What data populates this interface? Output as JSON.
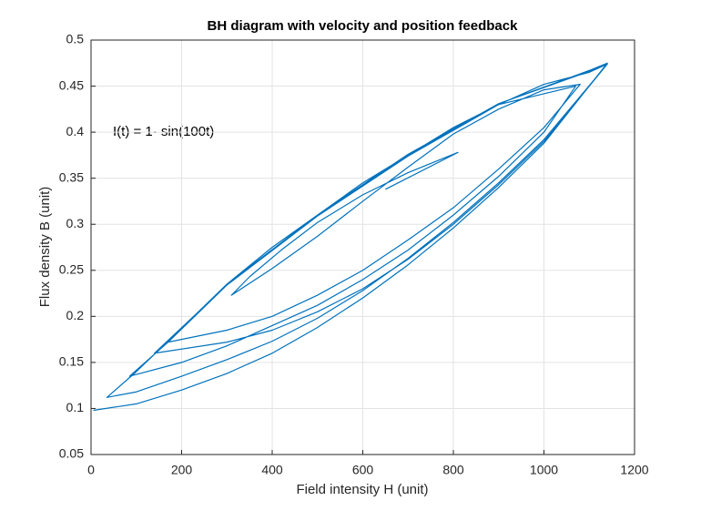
{
  "chart_data": {
    "type": "line",
    "title": "BH diagram with velocity and position feedback",
    "xlabel": "Field intensity H (unit)",
    "ylabel": "Flux density B (unit)",
    "annotation": "I(t) = 1· sin(100t)",
    "xlim": [
      0,
      1200
    ],
    "xticks": [
      0,
      200,
      400,
      600,
      800,
      1000,
      1200
    ],
    "ylim": [
      0.05,
      0.5
    ],
    "yticks": [
      0.05,
      0.1,
      0.15,
      0.2,
      0.25,
      0.3,
      0.35,
      0.4,
      0.45,
      0.5
    ],
    "grid": true,
    "series": [
      {
        "color": "#0072bd",
        "x": [
          650,
          810,
          700,
          600,
          500,
          420,
          350,
          310,
          400,
          500,
          600,
          700,
          800,
          900,
          1000,
          1080,
          1000,
          900,
          800,
          700,
          600,
          500,
          400,
          300,
          170,
          300,
          400,
          500,
          600,
          700,
          800,
          900,
          1000,
          1100,
          1140,
          1000,
          900,
          800,
          700,
          600,
          500,
          400,
          300,
          140,
          300,
          500,
          700,
          900,
          1070,
          1000,
          900,
          800,
          700,
          600,
          500,
          400,
          300,
          200,
          85,
          170,
          300,
          500,
          700,
          900,
          1100,
          1140,
          1000,
          900,
          800,
          700,
          600,
          500,
          400,
          300,
          200,
          100,
          35,
          100,
          170,
          300,
          500,
          700,
          900,
          1100,
          1140,
          1000,
          900,
          800,
          700,
          600,
          500,
          400,
          300,
          200,
          100,
          5
        ],
        "values": [
          0.338,
          0.378,
          0.356,
          0.332,
          0.302,
          0.272,
          0.243,
          0.223,
          0.252,
          0.287,
          0.325,
          0.362,
          0.398,
          0.425,
          0.446,
          0.452,
          0.405,
          0.36,
          0.318,
          0.283,
          0.25,
          0.223,
          0.2,
          0.185,
          0.172,
          0.235,
          0.275,
          0.31,
          0.345,
          0.375,
          0.405,
          0.43,
          0.452,
          0.465,
          0.474,
          0.39,
          0.343,
          0.3,
          0.262,
          0.23,
          0.205,
          0.185,
          0.172,
          0.16,
          0.234,
          0.309,
          0.374,
          0.43,
          0.45,
          0.4,
          0.352,
          0.31,
          0.272,
          0.24,
          0.212,
          0.19,
          0.168,
          0.15,
          0.135,
          0.172,
          0.234,
          0.31,
          0.375,
          0.431,
          0.466,
          0.474,
          0.392,
          0.345,
          0.302,
          0.263,
          0.228,
          0.198,
          0.173,
          0.153,
          0.135,
          0.118,
          0.112,
          0.14,
          0.173,
          0.235,
          0.31,
          0.376,
          0.431,
          0.467,
          0.475,
          0.388,
          0.34,
          0.296,
          0.256,
          0.22,
          0.188,
          0.16,
          0.138,
          0.12,
          0.105,
          0.098
        ]
      }
    ]
  }
}
